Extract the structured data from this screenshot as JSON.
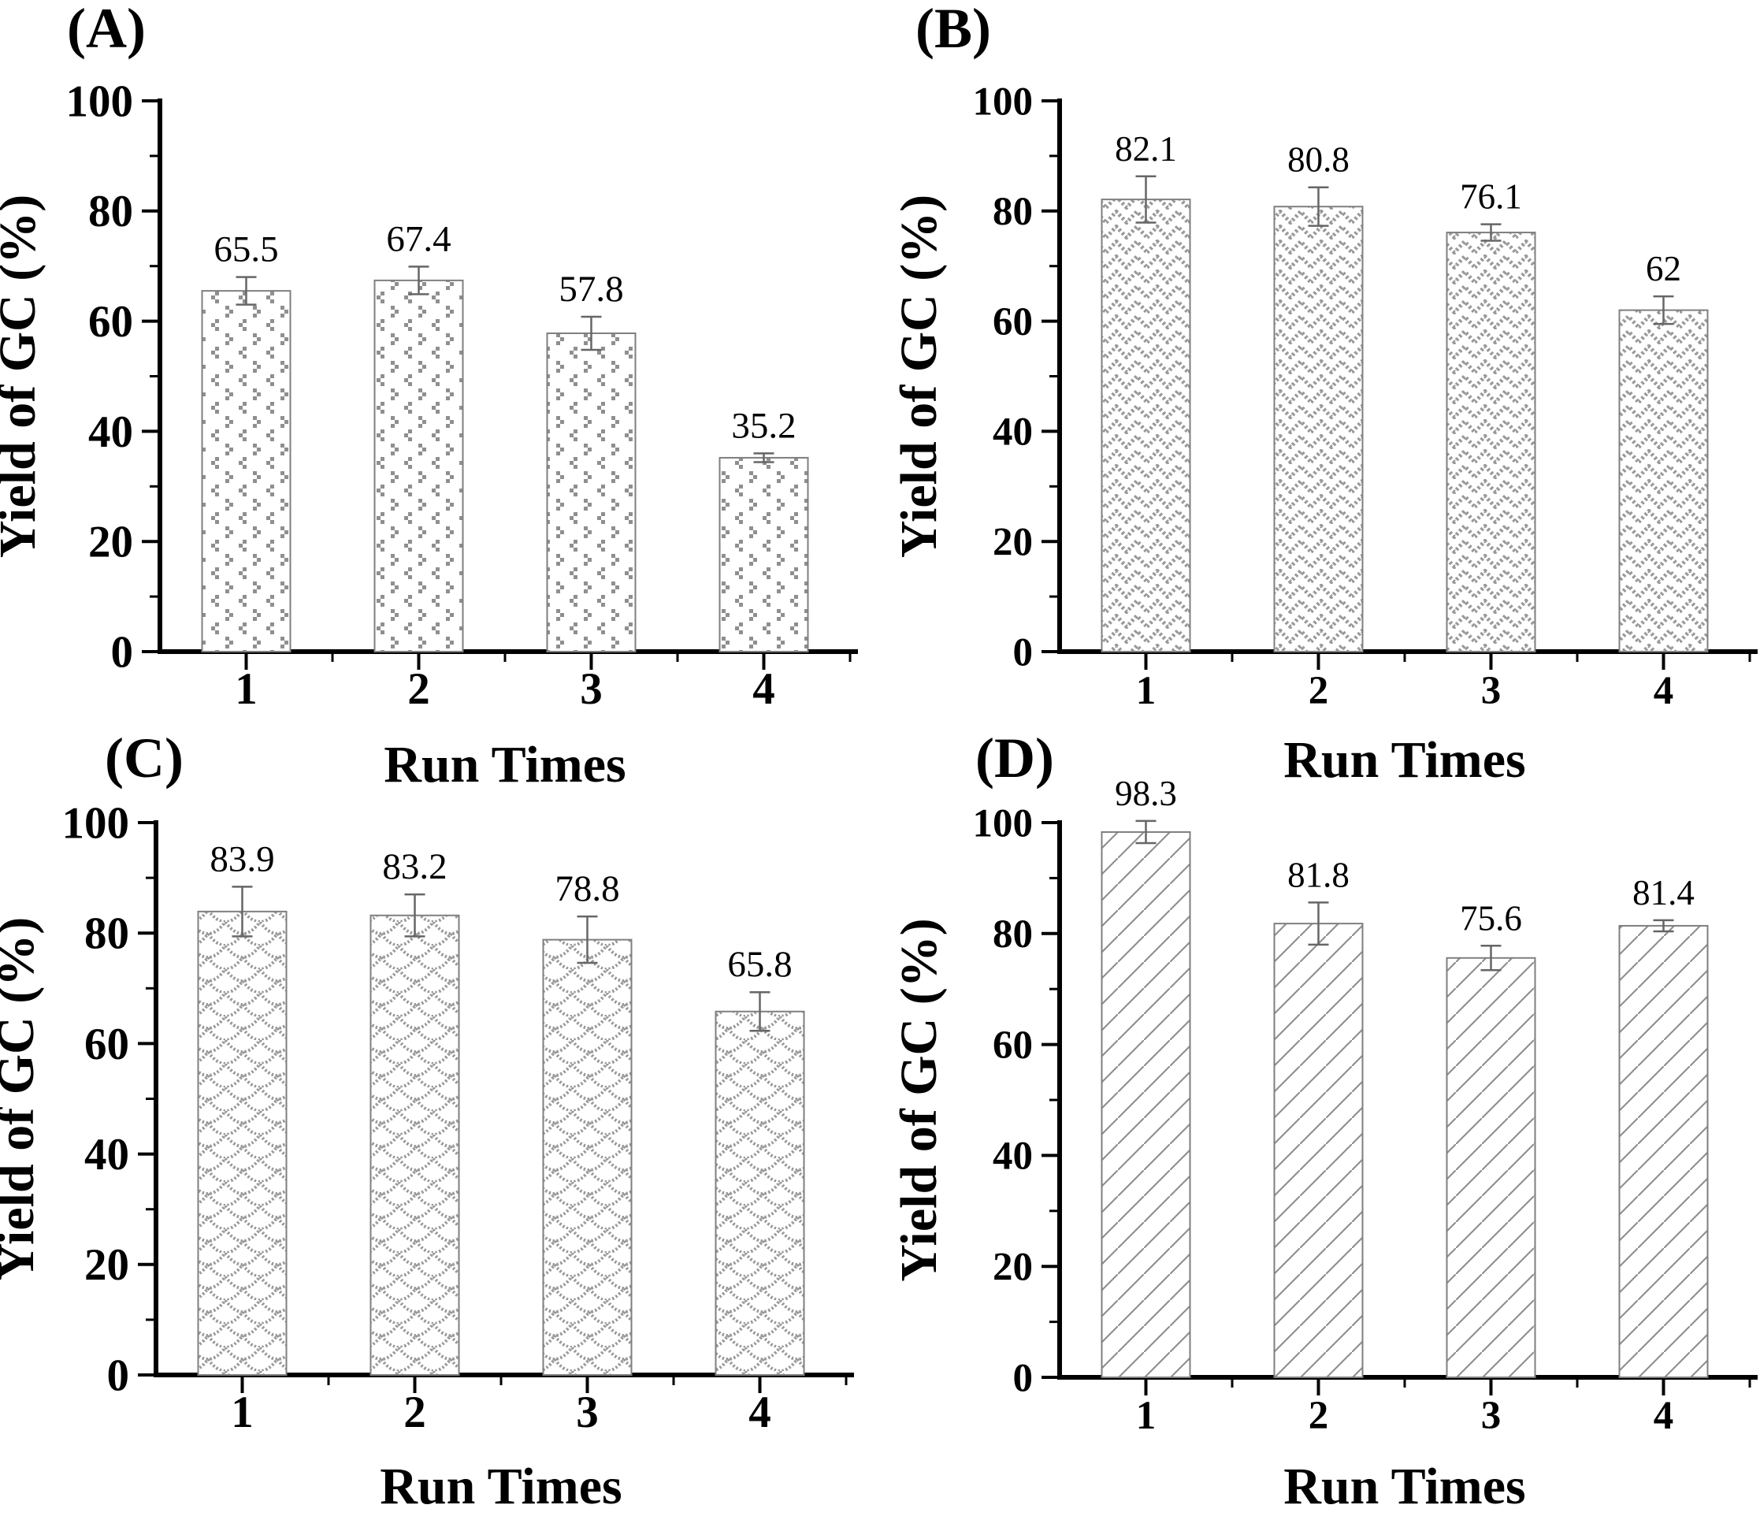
{
  "figure": {
    "background": "#ffffff",
    "colors": {
      "axis": "#000000",
      "text": "#000000",
      "bar_outline": "#7f7f7f",
      "hatch": "#8f8f8f",
      "error_bar": "#666666",
      "bar_fill": "#ffffff"
    }
  },
  "chart_data": [
    {
      "type": "bar",
      "panel_label": "(A)",
      "xlabel": "Run Times",
      "ylabel": "Yield of GC (%)",
      "categories": [
        "1",
        "2",
        "3",
        "4"
      ],
      "values": [
        65.5,
        67.4,
        57.8,
        35.2
      ],
      "errors": [
        2.5,
        2.5,
        3.0,
        0.8
      ],
      "value_labels": [
        "65.5",
        "67.4",
        "57.8",
        "35.2"
      ],
      "ylim": [
        0,
        100
      ],
      "yticks": [
        0,
        20,
        40,
        60,
        80,
        100
      ],
      "yticks_minor": [
        10,
        30,
        50,
        70,
        90
      ],
      "grid": "off",
      "legend": "none",
      "hatch": "dots"
    },
    {
      "type": "bar",
      "panel_label": "(B)",
      "xlabel": "Run Times",
      "ylabel": "Yield of GC (%)",
      "categories": [
        "1",
        "2",
        "3",
        "4"
      ],
      "values": [
        82.1,
        80.8,
        76.1,
        62
      ],
      "errors": [
        4.2,
        3.5,
        1.5,
        2.5
      ],
      "value_labels": [
        "82.1",
        "80.8",
        "76.1",
        "62"
      ],
      "ylim": [
        0,
        100
      ],
      "yticks": [
        0,
        20,
        40,
        60,
        80,
        100
      ],
      "yticks_minor": [
        10,
        30,
        50,
        70,
        90
      ],
      "grid": "off",
      "legend": "none",
      "hatch": "zigzag"
    },
    {
      "type": "bar",
      "panel_label": "(C)",
      "xlabel": "Run Times",
      "ylabel": "Yield of GC (%)",
      "categories": [
        "1",
        "2",
        "3",
        "4"
      ],
      "values": [
        83.9,
        83.2,
        78.8,
        65.8
      ],
      "errors": [
        4.5,
        3.8,
        4.2,
        3.5
      ],
      "value_labels": [
        "83.9",
        "83.2",
        "78.8",
        "65.8"
      ],
      "ylim": [
        0,
        100
      ],
      "yticks": [
        0,
        20,
        40,
        60,
        80,
        100
      ],
      "yticks_minor": [
        10,
        30,
        50,
        70,
        90
      ],
      "grid": "off",
      "legend": "none",
      "hatch": "scales"
    },
    {
      "type": "bar",
      "panel_label": "(D)",
      "xlabel": "Run Times",
      "ylabel": "Yield of GC (%)",
      "categories": [
        "1",
        "2",
        "3",
        "4"
      ],
      "values": [
        98.3,
        81.8,
        75.6,
        81.4
      ],
      "errors": [
        2.0,
        3.8,
        2.2,
        1.0
      ],
      "value_labels": [
        "98.3",
        "81.8",
        "75.6",
        "81.4"
      ],
      "ylim": [
        0,
        100
      ],
      "yticks": [
        0,
        20,
        40,
        60,
        80,
        100
      ],
      "yticks_minor": [
        10,
        30,
        50,
        70,
        90
      ],
      "grid": "off",
      "legend": "none",
      "hatch": "diagonal"
    }
  ]
}
